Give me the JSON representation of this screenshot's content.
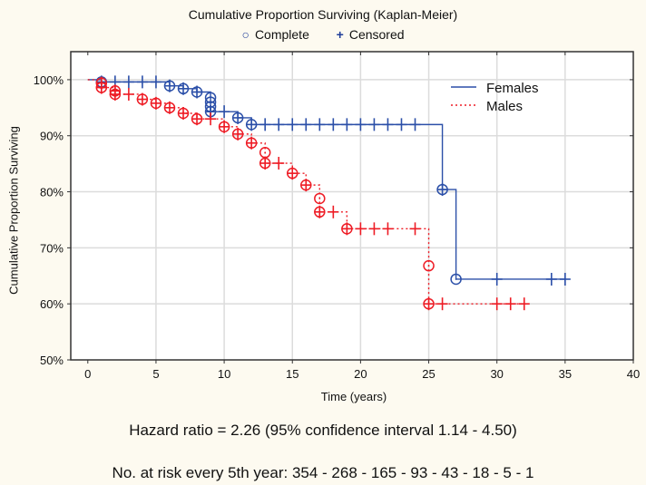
{
  "chart_data": {
    "type": "line",
    "title": "Cumulative Proportion Surviving (Kaplan-Meier)",
    "marker_legend": [
      {
        "symbol": "circle",
        "label": "Complete"
      },
      {
        "symbol": "plus",
        "label": "Censored"
      }
    ],
    "xlabel": "Time (years)",
    "ylabel": "Cumulative Proportion Surviving",
    "xlim": [
      -1.25,
      40
    ],
    "ylim": [
      50,
      105
    ],
    "xticks": [
      0,
      5,
      10,
      15,
      20,
      25,
      30,
      35,
      40
    ],
    "yticks": [
      50,
      60,
      70,
      80,
      90,
      100
    ],
    "ytick_labels": [
      "50%",
      "60%",
      "70%",
      "80%",
      "90%",
      "100%"
    ],
    "grid": true,
    "legend_position": "top-right",
    "series": [
      {
        "name": "Females",
        "color": "#2b4fa8",
        "line_style": "solid",
        "end_time": 35,
        "complete": [
          {
            "t": 1,
            "s": 99.6,
            "with_censor": true
          },
          {
            "t": 6,
            "s": 98.9,
            "with_censor": true
          },
          {
            "t": 7,
            "s": 98.4,
            "with_censor": true
          },
          {
            "t": 8,
            "s": 97.8,
            "with_censor": true
          },
          {
            "t": 9,
            "s": 96.8,
            "with_censor": false
          },
          {
            "t": 9,
            "s": 96.0,
            "with_censor": false
          },
          {
            "t": 9,
            "s": 95.2,
            "with_censor": false
          },
          {
            "t": 9,
            "s": 94.3,
            "with_censor": true
          },
          {
            "t": 11,
            "s": 93.2,
            "with_censor": true
          },
          {
            "t": 12,
            "s": 92.0,
            "with_censor": true
          },
          {
            "t": 26,
            "s": 80.4,
            "with_censor": true
          },
          {
            "t": 27,
            "s": 64.4,
            "with_censor": false
          }
        ],
        "censored": [
          2,
          3,
          4,
          5,
          9,
          10,
          13,
          14,
          15,
          16,
          17,
          18,
          19,
          20,
          21,
          22,
          23,
          24,
          30,
          34,
          35
        ]
      },
      {
        "name": "Males",
        "color": "#ee1c25",
        "line_style": "dotted",
        "end_time": 32,
        "complete": [
          {
            "t": 1,
            "s": 99.4,
            "with_censor": true
          },
          {
            "t": 1,
            "s": 98.6,
            "with_censor": true
          },
          {
            "t": 2,
            "s": 98.0,
            "with_censor": true
          },
          {
            "t": 2,
            "s": 97.4,
            "with_censor": true
          },
          {
            "t": 4,
            "s": 96.5,
            "with_censor": true
          },
          {
            "t": 5,
            "s": 95.8,
            "with_censor": true
          },
          {
            "t": 6,
            "s": 95.0,
            "with_censor": true
          },
          {
            "t": 7,
            "s": 94.0,
            "with_censor": true
          },
          {
            "t": 8,
            "s": 93.0,
            "with_censor": true
          },
          {
            "t": 10,
            "s": 91.6,
            "with_censor": true
          },
          {
            "t": 11,
            "s": 90.3,
            "with_censor": true
          },
          {
            "t": 12,
            "s": 88.7,
            "with_censor": true
          },
          {
            "t": 13,
            "s": 87.0,
            "with_censor": false
          },
          {
            "t": 13,
            "s": 85.1,
            "with_censor": true
          },
          {
            "t": 15,
            "s": 83.3,
            "with_censor": true
          },
          {
            "t": 16,
            "s": 81.2,
            "with_censor": true
          },
          {
            "t": 17,
            "s": 78.8,
            "with_censor": false
          },
          {
            "t": 17,
            "s": 76.4,
            "with_censor": true
          },
          {
            "t": 19,
            "s": 73.4,
            "with_censor": true
          },
          {
            "t": 25,
            "s": 66.8,
            "with_censor": false
          },
          {
            "t": 25,
            "s": 60.0,
            "with_censor": true
          }
        ],
        "censored": [
          3,
          9,
          14,
          18,
          20,
          21,
          22,
          24,
          26,
          30,
          31,
          32
        ]
      }
    ]
  },
  "footer": {
    "hazard_ratio": "Hazard ratio = 2.26 (95% confidence interval 1.14 - 4.50)",
    "at_risk": "No. at risk every 5th year:  354 - 268 - 165 - 93 - 43 - 18 - 5 - 1"
  }
}
